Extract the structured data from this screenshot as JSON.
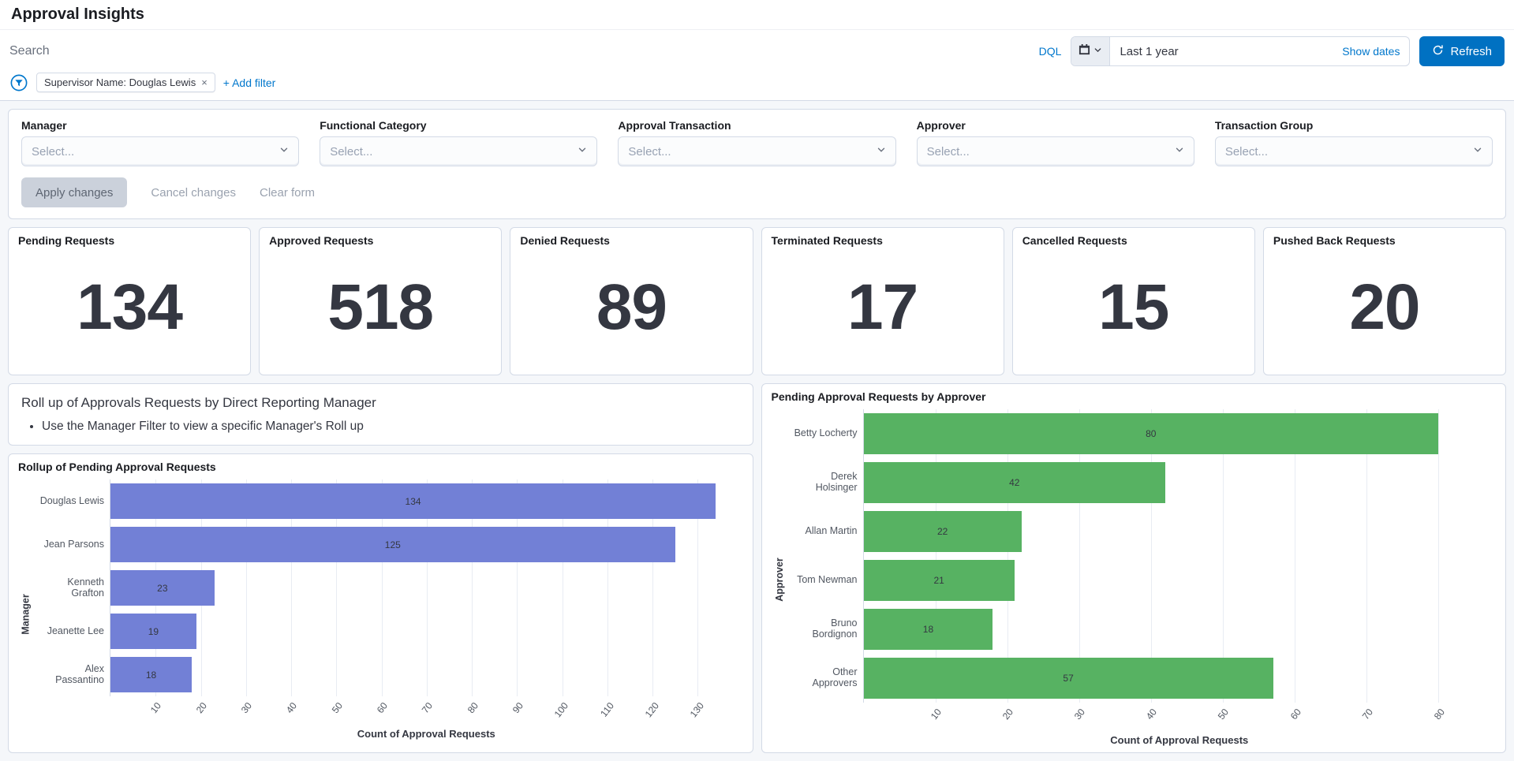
{
  "header": {
    "title": "Approval Insights"
  },
  "query_bar": {
    "search_placeholder": "Search",
    "dql_label": "DQL",
    "date_range_value": "Last 1 year",
    "show_dates_label": "Show dates",
    "refresh_label": "Refresh"
  },
  "filter_bar": {
    "pill_label": "Supervisor Name: Douglas Lewis",
    "remove_symbol": "×",
    "add_filter_label": "+ Add filter"
  },
  "controls": {
    "fields": [
      {
        "label": "Manager",
        "placeholder": "Select..."
      },
      {
        "label": "Functional Category",
        "placeholder": "Select..."
      },
      {
        "label": "Approval Transaction",
        "placeholder": "Select..."
      },
      {
        "label": "Approver",
        "placeholder": "Select..."
      },
      {
        "label": "Transaction Group",
        "placeholder": "Select..."
      }
    ],
    "buttons": [
      {
        "label": "Apply changes",
        "style": "disabled"
      },
      {
        "label": "Cancel changes",
        "style": "text"
      },
      {
        "label": "Clear form",
        "style": "text"
      }
    ]
  },
  "kpis": [
    {
      "label": "Pending Requests",
      "value": "134"
    },
    {
      "label": "Approved Requests",
      "value": "518"
    },
    {
      "label": "Denied Requests",
      "value": "89"
    },
    {
      "label": "Terminated Requests",
      "value": "17"
    },
    {
      "label": "Cancelled Requests",
      "value": "15"
    },
    {
      "label": "Pushed Back Requests",
      "value": "20"
    }
  ],
  "info_panel": {
    "title": "Roll up of Approvals Requests by Direct Reporting Manager",
    "bullet": "Use the Manager Filter to view a specific Manager's Roll up"
  },
  "chart_data": [
    {
      "type": "bar",
      "orientation": "horizontal",
      "title": "Rollup of Pending Approval Requests",
      "categories": [
        "Douglas Lewis",
        "Jean Parsons",
        "Kenneth Grafton",
        "Jeanette Lee",
        "Alex Passantino"
      ],
      "values": [
        134,
        125,
        23,
        19,
        18
      ],
      "xlabel": "Count of Approval Requests",
      "ylabel": "Manager",
      "xlim": [
        0,
        140
      ],
      "xticks": [
        10,
        20,
        30,
        40,
        50,
        60,
        70,
        80,
        90,
        100,
        110,
        120,
        130
      ],
      "grid": true,
      "legend": "none",
      "bar_color": "#7280d6"
    },
    {
      "type": "bar",
      "orientation": "horizontal",
      "title": "Pending Approval Requests by Approver",
      "categories": [
        "Betty Locherty",
        "Derek Holsinger",
        "Allan Martin",
        "Tom Newman",
        "Bruno Bordignon",
        "Other Approvers"
      ],
      "values": [
        80,
        42,
        22,
        21,
        18,
        57
      ],
      "xlabel": "Count of Approval Requests",
      "ylabel": "Approver",
      "xlim": [
        0,
        88
      ],
      "xticks": [
        10,
        20,
        30,
        40,
        50,
        60,
        70,
        80
      ],
      "grid": true,
      "legend": "none",
      "bar_color": "#57b262"
    }
  ],
  "colors": {
    "accent_blue": "#0077cc",
    "refresh_button": "#0071c2",
    "kpi_number": "#343741",
    "left_bars": "#7280d6",
    "right_bars": "#57b262",
    "page_background": "#f5f7fa",
    "card_border": "#d3dae6"
  }
}
